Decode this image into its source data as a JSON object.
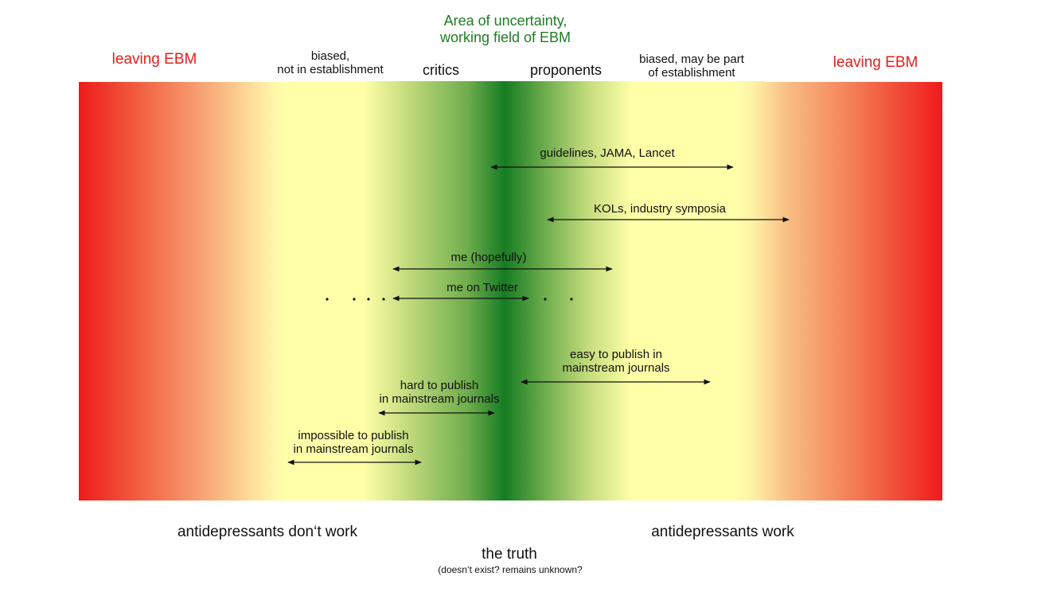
{
  "header": {
    "uncertainty_title": "Area of uncertainty,\nworking field of EBM",
    "leaving_left": "leaving EBM",
    "leaving_right": "leaving EBM",
    "biased_left": "biased,\nnot in establishment",
    "critics": "critics",
    "proponents": "proponents",
    "biased_right": "biased, may be part\nof establishment"
  },
  "arrows": [
    {
      "label": "guidelines, JAMA, Lancet"
    },
    {
      "label": "KOLs, industry symposia"
    },
    {
      "label": "me (hopefully)"
    },
    {
      "label": "me on Twitter"
    },
    {
      "label": "easy to publish in\nmainstream journals"
    },
    {
      "label": "hard to publish\nin mainstream journals"
    },
    {
      "label": "impossible to publish\nin mainstream journals"
    }
  ],
  "footer": {
    "left": "antidepressants don‘t work",
    "right": "antidepressants work",
    "truth": "the truth",
    "truth_note": "(doesn‘t exist? remains unknown?"
  },
  "colors": {
    "green_accent": "#1e7d23",
    "red_accent": "#e3201b"
  }
}
